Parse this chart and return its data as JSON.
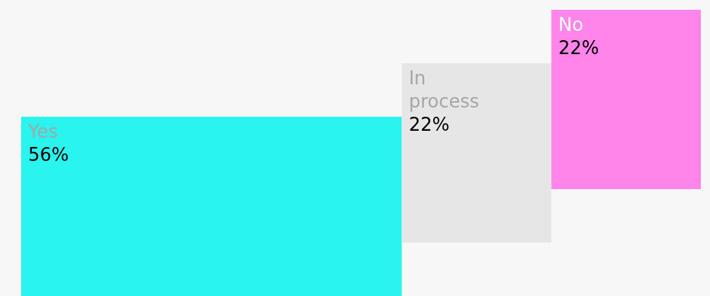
{
  "chart_data": {
    "type": "other",
    "categories": [
      "Yes",
      "In process",
      "No"
    ],
    "values": [
      56,
      22,
      22
    ],
    "value_labels": [
      "56%",
      "22%",
      "22%"
    ],
    "colors": [
      "#29f4ee",
      "#e6e6e6",
      "#ff85eb"
    ]
  }
}
